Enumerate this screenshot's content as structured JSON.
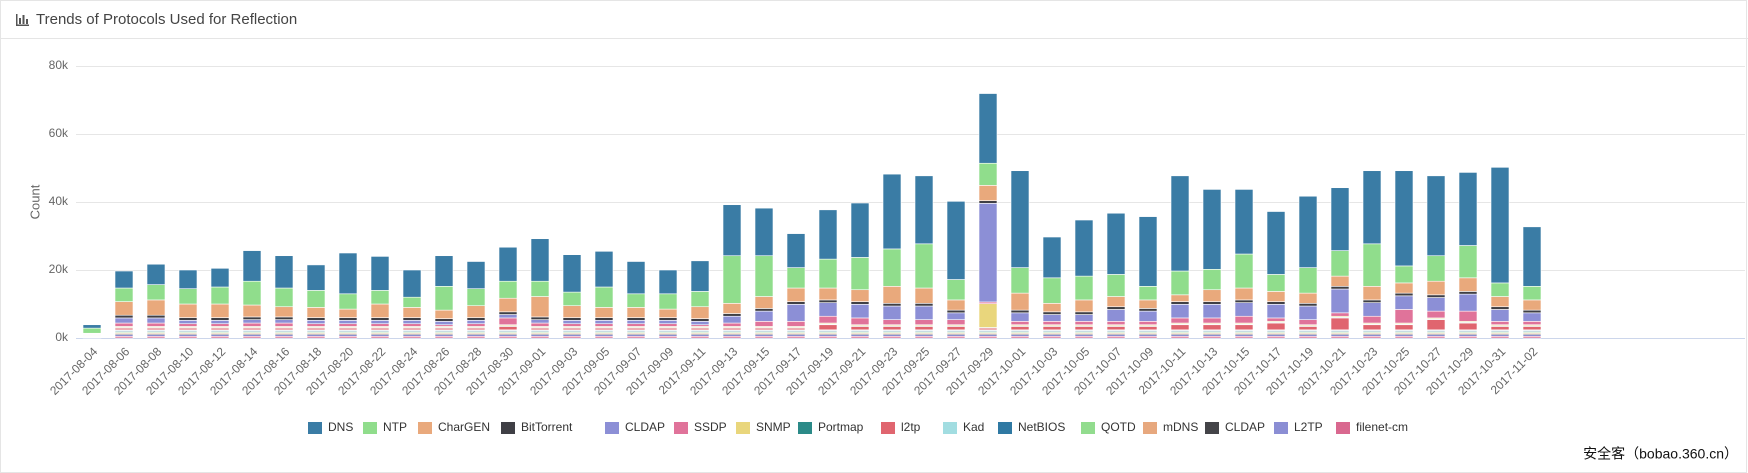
{
  "chart_data": {
    "type": "stacked_bar",
    "title": "Trends of Protocols Used for Reflection",
    "y_label": "Count",
    "watermark": "安全客（bobao.360.cn）",
    "grid": true,
    "legend": "bottom",
    "ylim": [
      0,
      80000
    ],
    "yticks": [
      {
        "value": 0,
        "label": "0k"
      },
      {
        "value": 20000,
        "label": "20k"
      },
      {
        "value": 40000,
        "label": "40k"
      },
      {
        "value": 60000,
        "label": "60k"
      },
      {
        "value": 80000,
        "label": "80k"
      }
    ],
    "categories": [
      "2017-08-04",
      "2017-08-06",
      "2017-08-08",
      "2017-08-10",
      "2017-08-12",
      "2017-08-14",
      "2017-08-16",
      "2017-08-18",
      "2017-08-20",
      "2017-08-22",
      "2017-08-24",
      "2017-08-26",
      "2017-08-28",
      "2017-08-30",
      "2017-09-01",
      "2017-09-03",
      "2017-09-05",
      "2017-09-07",
      "2017-09-09",
      "2017-09-11",
      "2017-09-13",
      "2017-09-15",
      "2017-09-17",
      "2017-09-19",
      "2017-09-21",
      "2017-09-23",
      "2017-09-25",
      "2017-09-27",
      "2017-09-29",
      "2017-10-01",
      "2017-10-03",
      "2017-10-05",
      "2017-10-07",
      "2017-10-09",
      "2017-10-11",
      "2017-10-13",
      "2017-10-15",
      "2017-10-17",
      "2017-10-19",
      "2017-10-21",
      "2017-10-23",
      "2017-10-25",
      "2017-10-27",
      "2017-10-29",
      "2017-10-31",
      "2017-11-02"
    ],
    "series": [
      {
        "name": "DNS",
        "color": "#3a7ca5",
        "values": [
          1000,
          5000,
          6000,
          5500,
          5500,
          9000,
          9500,
          7500,
          12000,
          10000,
          8000,
          9000,
          8000,
          10000,
          12500,
          11000,
          10500,
          9500,
          7000,
          9000,
          15000,
          14000,
          10000,
          14500,
          16000,
          22000,
          20000,
          23000,
          20500,
          28500,
          12000,
          16500,
          18000,
          20500,
          28000,
          23500,
          19000,
          18500,
          21000,
          18500,
          21500,
          28000,
          23500,
          21500,
          34000,
          17500
        ]
      },
      {
        "name": "NTP",
        "color": "#90dd8c",
        "values": [
          1500,
          4000,
          4500,
          4500,
          5000,
          7000,
          5500,
          5000,
          4500,
          4000,
          3000,
          7000,
          5000,
          5000,
          4500,
          4000,
          6000,
          4000,
          4500,
          4500,
          14000,
          12000,
          6000,
          8500,
          9500,
          11000,
          13000,
          6000,
          6500,
          7500,
          7500,
          7000,
          6500,
          4000,
          7000,
          6000,
          10000,
          5000,
          7500,
          7500,
          12500,
          5000,
          7500,
          9500,
          4000,
          4000
        ]
      },
      {
        "name": "CharGEN",
        "color": "#e9a97c",
        "values": [
          100,
          4000,
          4500,
          4000,
          4000,
          3500,
          3000,
          3000,
          2500,
          4000,
          3000,
          2500,
          3500,
          4000,
          6000,
          3500,
          3000,
          3000,
          2500,
          3500,
          3000,
          3500,
          4000,
          3500,
          3500,
          5000,
          4500,
          3000,
          4500,
          5000,
          2500,
          3500,
          3000,
          2500,
          2000,
          3500,
          3500,
          3000,
          3000,
          3000,
          4000,
          3000,
          4000,
          4000,
          3000,
          3000
        ]
      },
      {
        "name": "BitTorrent",
        "color": "#3f3f45",
        "values": [
          100,
          800,
          800,
          800,
          800,
          800,
          800,
          800,
          800,
          800,
          800,
          800,
          800,
          800,
          800,
          800,
          800,
          800,
          800,
          800,
          800,
          800,
          800,
          800,
          800,
          800,
          800,
          800,
          800,
          800,
          800,
          800,
          800,
          800,
          800,
          800,
          800,
          800,
          800,
          800,
          800,
          800,
          800,
          800,
          800,
          800
        ]
      },
      {
        "name": "CLDAP",
        "color": "#8c8fd6",
        "values": [
          100,
          1500,
          1500,
          1000,
          1000,
          1000,
          1000,
          1000,
          1000,
          1000,
          1000,
          1000,
          1000,
          1000,
          1000,
          1000,
          1000,
          1000,
          1000,
          1000,
          2000,
          3000,
          5000,
          4000,
          4000,
          4000,
          4000,
          2000,
          29000,
          2500,
          2000,
          2000,
          3500,
          3000,
          4000,
          4000,
          4000,
          4000,
          4000,
          7000,
          4000,
          4000,
          4000,
          5000,
          3500,
          2500
        ]
      },
      {
        "name": "SSDP",
        "color": "#e0739a",
        "values": [
          100,
          1000,
          1000,
          800,
          800,
          1000,
          1000,
          800,
          800,
          800,
          800,
          500,
          800,
          2000,
          1000,
          800,
          800,
          800,
          800,
          500,
          1000,
          1500,
          1500,
          2000,
          2000,
          1500,
          1500,
          1500,
          500,
          1000,
          1000,
          1000,
          1000,
          1000,
          1500,
          1500,
          2000,
          1000,
          1500,
          1000,
          2000,
          4000,
          2000,
          3000,
          1000,
          1000
        ]
      },
      {
        "name": "SNMP",
        "color": "#e9d67c",
        "values": [
          100,
          300,
          300,
          300,
          300,
          300,
          300,
          300,
          300,
          300,
          300,
          300,
          300,
          300,
          300,
          300,
          300,
          300,
          300,
          300,
          300,
          300,
          300,
          300,
          300,
          300,
          300,
          300,
          7000,
          300,
          300,
          300,
          300,
          300,
          300,
          300,
          300,
          300,
          300,
          300,
          300,
          300,
          300,
          300,
          300,
          300
        ]
      },
      {
        "name": "Portmap",
        "color": "#2b8a88",
        "values": [
          100,
          200,
          200,
          200,
          200,
          200,
          200,
          200,
          200,
          200,
          200,
          200,
          200,
          200,
          200,
          200,
          200,
          200,
          200,
          200,
          200,
          200,
          200,
          200,
          200,
          200,
          200,
          200,
          200,
          200,
          200,
          200,
          200,
          200,
          200,
          200,
          200,
          200,
          200,
          200,
          200,
          200,
          200,
          200,
          200,
          200
        ]
      },
      {
        "name": "l2tp",
        "color": "#e0656f",
        "values": [
          100,
          500,
          500,
          500,
          500,
          500,
          500,
          500,
          500,
          500,
          500,
          500,
          500,
          1000,
          500,
          500,
          500,
          500,
          500,
          500,
          500,
          500,
          500,
          1500,
          1000,
          1000,
          1000,
          1000,
          500,
          1000,
          1000,
          1000,
          1000,
          1000,
          1500,
          1500,
          1500,
          2000,
          1000,
          3500,
          1500,
          1500,
          3000,
          2000,
          1000,
          1000
        ]
      },
      {
        "name": "Kad",
        "color": "#a2dde1",
        "values": [
          100,
          200,
          200,
          200,
          200,
          200,
          200,
          200,
          200,
          200,
          200,
          200,
          200,
          200,
          200,
          200,
          200,
          200,
          200,
          200,
          200,
          200,
          200,
          200,
          200,
          200,
          200,
          200,
          200,
          200,
          200,
          200,
          200,
          200,
          200,
          200,
          200,
          200,
          200,
          200,
          200,
          200,
          200,
          200,
          200,
          200
        ]
      },
      {
        "name": "NetBIOS",
        "color": "#2f79a3",
        "values": [
          100,
          300,
          300,
          300,
          300,
          300,
          300,
          300,
          300,
          300,
          300,
          300,
          300,
          300,
          300,
          300,
          300,
          300,
          300,
          300,
          300,
          300,
          300,
          300,
          300,
          300,
          300,
          300,
          300,
          300,
          300,
          300,
          300,
          300,
          300,
          300,
          300,
          300,
          300,
          300,
          300,
          300,
          300,
          300,
          300,
          300
        ]
      },
      {
        "name": "QOTD",
        "color": "#92dc8e",
        "values": [
          100,
          300,
          300,
          300,
          300,
          300,
          300,
          300,
          300,
          300,
          300,
          300,
          300,
          300,
          300,
          300,
          300,
          300,
          300,
          300,
          300,
          300,
          300,
          300,
          300,
          300,
          300,
          300,
          300,
          300,
          300,
          300,
          300,
          300,
          300,
          300,
          300,
          300,
          300,
          300,
          300,
          300,
          300,
          300,
          300,
          300
        ]
      },
      {
        "name": "mDNS",
        "color": "#e7a87e",
        "values": [
          100,
          300,
          300,
          300,
          300,
          300,
          300,
          300,
          300,
          300,
          300,
          300,
          300,
          300,
          300,
          300,
          300,
          300,
          300,
          300,
          300,
          300,
          300,
          300,
          300,
          300,
          300,
          300,
          300,
          300,
          300,
          300,
          300,
          300,
          300,
          300,
          300,
          300,
          300,
          300,
          300,
          300,
          300,
          300,
          300,
          300
        ]
      },
      {
        "name": "CLDAP",
        "color": "#444448",
        "values": [
          100,
          300,
          300,
          300,
          300,
          300,
          300,
          300,
          300,
          300,
          300,
          300,
          300,
          300,
          300,
          300,
          300,
          300,
          300,
          300,
          300,
          300,
          300,
          300,
          300,
          300,
          300,
          300,
          300,
          300,
          300,
          300,
          300,
          300,
          300,
          300,
          300,
          300,
          300,
          300,
          300,
          300,
          300,
          300,
          300,
          300
        ]
      },
      {
        "name": "L2TP",
        "color": "#8b8ed4",
        "values": [
          100,
          500,
          500,
          500,
          500,
          500,
          500,
          500,
          500,
          500,
          500,
          500,
          500,
          500,
          500,
          500,
          500,
          500,
          500,
          500,
          500,
          500,
          500,
          500,
          500,
          500,
          500,
          500,
          500,
          500,
          500,
          500,
          500,
          500,
          500,
          500,
          500,
          500,
          500,
          500,
          500,
          500,
          500,
          500,
          500,
          500
        ]
      },
      {
        "name": "filenet-cm",
        "color": "#d9688f",
        "values": [
          100,
          500,
          500,
          500,
          500,
          500,
          500,
          500,
          500,
          500,
          500,
          500,
          500,
          500,
          500,
          500,
          500,
          500,
          500,
          500,
          500,
          500,
          500,
          500,
          500,
          500,
          500,
          500,
          500,
          500,
          500,
          500,
          500,
          500,
          500,
          500,
          500,
          500,
          500,
          500,
          500,
          500,
          500,
          500,
          500,
          500
        ]
      }
    ]
  }
}
